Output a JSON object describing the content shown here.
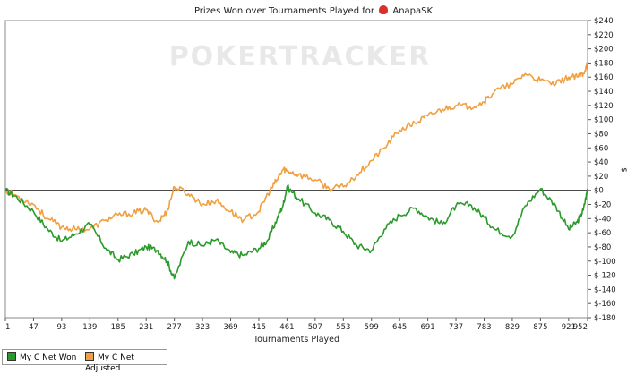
{
  "chart_data": {
    "type": "line",
    "title_prefix": "Prizes Won over Tournaments Played for",
    "title_player": "AnapaSK",
    "watermark": "POKERTRACKER",
    "xlabel": "Tournaments Played",
    "ylabel": "$",
    "xlim": [
      1,
      952
    ],
    "ylim": [
      -180,
      240
    ],
    "x_ticks": [
      1,
      47,
      93,
      139,
      185,
      231,
      277,
      323,
      369,
      415,
      461,
      507,
      553,
      599,
      645,
      691,
      737,
      783,
      829,
      875,
      921,
      952
    ],
    "y_ticks": [
      -180,
      -160,
      -140,
      -120,
      -100,
      -80,
      -60,
      -40,
      -20,
      0,
      20,
      40,
      60,
      80,
      100,
      120,
      140,
      160,
      180,
      200,
      220,
      240
    ],
    "y_tick_labels": [
      "$-180",
      "$-160",
      "$-140",
      "$-120",
      "$-100",
      "$-80",
      "$-60",
      "$-40",
      "$-20",
      "$0",
      "$20",
      "$40",
      "$60",
      "$80",
      "$100",
      "$120",
      "$140",
      "$160",
      "$180",
      "$200",
      "$220",
      "$240"
    ],
    "zero_line": true,
    "legend_position": "bottom-left",
    "series": [
      {
        "name": "My C Net Won",
        "color": "#2a9a2a",
        "x": [
          1,
          20,
          47,
          70,
          93,
          115,
          139,
          165,
          185,
          210,
          231,
          250,
          265,
          277,
          300,
          323,
          345,
          369,
          390,
          415,
          430,
          445,
          455,
          461,
          480,
          507,
          530,
          553,
          575,
          599,
          620,
          645,
          670,
          691,
          715,
          737,
          760,
          783,
          800,
          829,
          850,
          875,
          900,
          921,
          935,
          945,
          952
        ],
        "values": [
          0,
          -10,
          -30,
          -55,
          -72,
          -62,
          -48,
          -82,
          -98,
          -90,
          -80,
          -85,
          -100,
          -125,
          -72,
          -78,
          -70,
          -88,
          -92,
          -82,
          -70,
          -40,
          -20,
          5,
          -12,
          -32,
          -42,
          -58,
          -78,
          -85,
          -55,
          -35,
          -25,
          -38,
          -48,
          -22,
          -20,
          -38,
          -55,
          -65,
          -22,
          2,
          -22,
          -55,
          -45,
          -28,
          2
        ]
      },
      {
        "name": "My C Net Adjusted",
        "color": "#f0a040",
        "x": [
          1,
          20,
          47,
          70,
          93,
          115,
          139,
          165,
          185,
          210,
          231,
          250,
          265,
          277,
          300,
          323,
          345,
          369,
          390,
          415,
          430,
          445,
          455,
          461,
          480,
          507,
          530,
          553,
          575,
          599,
          620,
          645,
          670,
          691,
          715,
          737,
          760,
          783,
          800,
          829,
          850,
          875,
          900,
          921,
          935,
          945,
          952
        ],
        "values": [
          0,
          -8,
          -20,
          -40,
          -52,
          -55,
          -55,
          -42,
          -35,
          -32,
          -28,
          -45,
          -30,
          5,
          -5,
          -20,
          -15,
          -30,
          -42,
          -30,
          -5,
          15,
          30,
          28,
          22,
          15,
          2,
          5,
          22,
          42,
          60,
          85,
          95,
          105,
          115,
          120,
          118,
          125,
          140,
          150,
          165,
          155,
          150,
          160,
          160,
          165,
          180
        ]
      }
    ]
  }
}
